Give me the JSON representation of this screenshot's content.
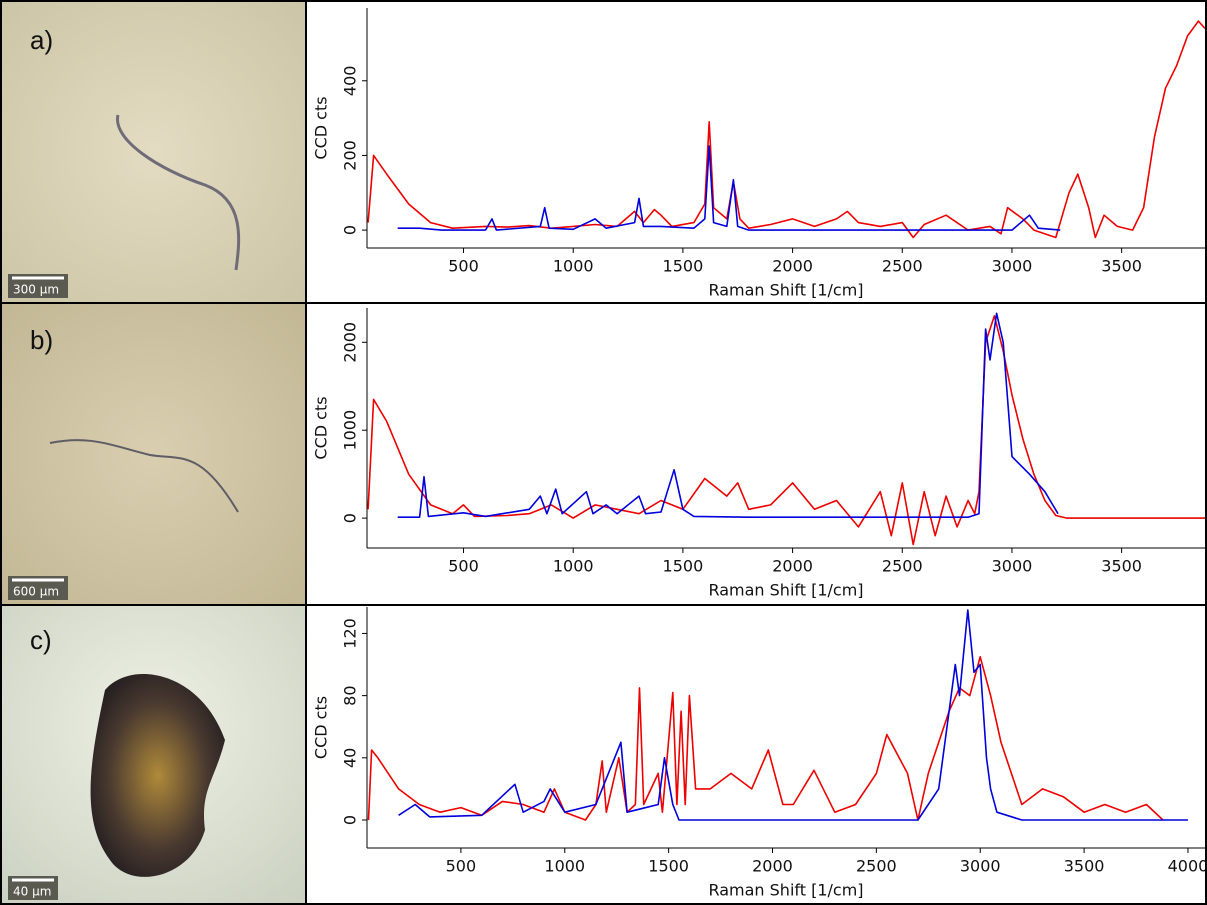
{
  "images": [
    {
      "label": "a)",
      "scale_bar": "300 µm"
    },
    {
      "label": "b)",
      "scale_bar": "600 µm"
    },
    {
      "label": "c)",
      "scale_bar": "40 µm"
    }
  ],
  "chart_data": [
    {
      "type": "line",
      "xlabel": "Raman Shift [1/cm]",
      "ylabel": "CCD cts",
      "xlim": [
        60,
        3880
      ],
      "xticks": [
        500,
        1000,
        1500,
        2000,
        2500,
        3000,
        3500
      ],
      "ylim": [
        -48,
        595
      ],
      "yticks": [
        0,
        200,
        400
      ],
      "series": [
        {
          "color": "#ee0000",
          "x": [
            65,
            90,
            150,
            250,
            350,
            450,
            600,
            700,
            800,
            900,
            1000,
            1100,
            1200,
            1280,
            1320,
            1370,
            1400,
            1450,
            1550,
            1600,
            1620,
            1640,
            1700,
            1730,
            1760,
            1800,
            1900,
            2000,
            2100,
            2200,
            2250,
            2300,
            2400,
            2500,
            2550,
            2600,
            2700,
            2800,
            2900,
            2950,
            2980,
            3050,
            3100,
            3200,
            3260,
            3300,
            3350,
            3380,
            3420,
            3480,
            3550,
            3600,
            3650,
            3700,
            3750,
            3800,
            3850,
            3880
          ],
          "values": [
            20,
            200,
            150,
            70,
            20,
            5,
            10,
            8,
            12,
            5,
            10,
            15,
            10,
            50,
            20,
            55,
            40,
            10,
            20,
            70,
            290,
            60,
            30,
            130,
            30,
            5,
            15,
            30,
            10,
            30,
            50,
            20,
            10,
            20,
            -20,
            15,
            40,
            0,
            10,
            -10,
            60,
            30,
            0,
            -20,
            100,
            150,
            60,
            -20,
            40,
            10,
            0,
            60,
            250,
            380,
            440,
            520,
            560,
            540
          ]
        },
        {
          "color": "#0000dd",
          "x": [
            200,
            300,
            400,
            600,
            630,
            650,
            850,
            870,
            890,
            1000,
            1100,
            1150,
            1280,
            1300,
            1320,
            1400,
            1550,
            1600,
            1620,
            1640,
            1700,
            1730,
            1750,
            1800,
            2500,
            3000,
            3080,
            3120,
            3220
          ],
          "values": [
            5,
            5,
            0,
            0,
            30,
            0,
            10,
            60,
            5,
            2,
            30,
            5,
            20,
            85,
            10,
            10,
            5,
            30,
            225,
            20,
            10,
            135,
            10,
            0,
            0,
            0,
            40,
            5,
            0
          ]
        }
      ]
    },
    {
      "type": "line",
      "xlabel": "Raman Shift [1/cm]",
      "ylabel": "CCD cts",
      "xlim": [
        60,
        3880
      ],
      "xticks": [
        500,
        1000,
        1500,
        2000,
        2500,
        3000,
        3500
      ],
      "ylim": [
        -340,
        2390
      ],
      "yticks": [
        0,
        1000,
        2000
      ],
      "series": [
        {
          "color": "#ee0000",
          "x": [
            65,
            90,
            150,
            250,
            350,
            450,
            500,
            550,
            700,
            800,
            900,
            1000,
            1100,
            1200,
            1300,
            1400,
            1500,
            1600,
            1700,
            1750,
            1800,
            1900,
            2000,
            2100,
            2200,
            2300,
            2400,
            2450,
            2500,
            2550,
            2600,
            2650,
            2700,
            2750,
            2800,
            2830,
            2850,
            2880,
            2920,
            2960,
            3000,
            3050,
            3100,
            3150,
            3200,
            3250,
            3880
          ],
          "values": [
            100,
            1350,
            1100,
            500,
            150,
            50,
            150,
            20,
            30,
            50,
            150,
            0,
            150,
            100,
            50,
            200,
            100,
            450,
            250,
            400,
            100,
            150,
            400,
            100,
            200,
            -100,
            300,
            -200,
            400,
            -300,
            300,
            -200,
            250,
            -100,
            200,
            50,
            300,
            2000,
            2300,
            1900,
            1400,
            900,
            500,
            200,
            30,
            0,
            0
          ]
        },
        {
          "color": "#0000dd",
          "x": [
            200,
            300,
            320,
            340,
            500,
            600,
            800,
            850,
            880,
            920,
            950,
            1060,
            1090,
            1150,
            1200,
            1300,
            1330,
            1400,
            1460,
            1500,
            1550,
            1800,
            2800,
            2850,
            2880,
            2900,
            2930,
            2960,
            3000,
            3080,
            3150,
            3210
          ],
          "values": [
            10,
            10,
            470,
            20,
            60,
            20,
            100,
            250,
            50,
            330,
            50,
            300,
            50,
            150,
            50,
            250,
            50,
            70,
            550,
            100,
            20,
            10,
            10,
            50,
            2150,
            1800,
            2330,
            2000,
            700,
            500,
            300,
            50
          ]
        }
      ]
    },
    {
      "type": "line",
      "xlabel": "Raman Shift [1/cm]",
      "ylabel": "CCD cts",
      "xlim": [
        48,
        4082
      ],
      "xticks": [
        500,
        1000,
        1500,
        2000,
        2500,
        3000,
        3500,
        4000
      ],
      "ylim": [
        -18,
        137
      ],
      "yticks": [
        0,
        40,
        80,
        120
      ],
      "series": [
        {
          "color": "#ee0000",
          "x": [
            55,
            70,
            100,
            200,
            300,
            400,
            500,
            600,
            700,
            800,
            900,
            950,
            1000,
            1100,
            1150,
            1180,
            1200,
            1260,
            1300,
            1340,
            1360,
            1380,
            1450,
            1470,
            1520,
            1540,
            1560,
            1580,
            1600,
            1630,
            1700,
            1800,
            1900,
            1980,
            2050,
            2100,
            2200,
            2300,
            2400,
            2500,
            2550,
            2650,
            2700,
            2750,
            2850,
            2900,
            2950,
            3000,
            3050,
            3100,
            3150,
            3200,
            3300,
            3400,
            3500,
            3600,
            3700,
            3800,
            3880
          ],
          "values": [
            0,
            45,
            40,
            20,
            10,
            5,
            8,
            3,
            12,
            10,
            5,
            20,
            5,
            0,
            10,
            38,
            5,
            40,
            5,
            10,
            85,
            10,
            30,
            5,
            82,
            10,
            70,
            10,
            80,
            20,
            20,
            30,
            20,
            45,
            10,
            10,
            32,
            5,
            10,
            30,
            55,
            30,
            0,
            30,
            70,
            85,
            80,
            105,
            80,
            50,
            30,
            10,
            20,
            15,
            5,
            10,
            5,
            10,
            0
          ]
        },
        {
          "color": "#0000dd",
          "x": [
            200,
            280,
            350,
            600,
            760,
            800,
            900,
            930,
            1000,
            1150,
            1270,
            1300,
            1450,
            1480,
            1520,
            1550,
            2700,
            2800,
            2850,
            2880,
            2900,
            2940,
            2970,
            3000,
            3030,
            3050,
            3080,
            3200,
            4000
          ],
          "values": [
            3,
            10,
            2,
            3,
            23,
            5,
            12,
            20,
            5,
            10,
            50,
            5,
            10,
            40,
            10,
            0,
            0,
            20,
            70,
            100,
            80,
            135,
            95,
            100,
            40,
            20,
            5,
            0,
            0
          ]
        }
      ]
    }
  ]
}
